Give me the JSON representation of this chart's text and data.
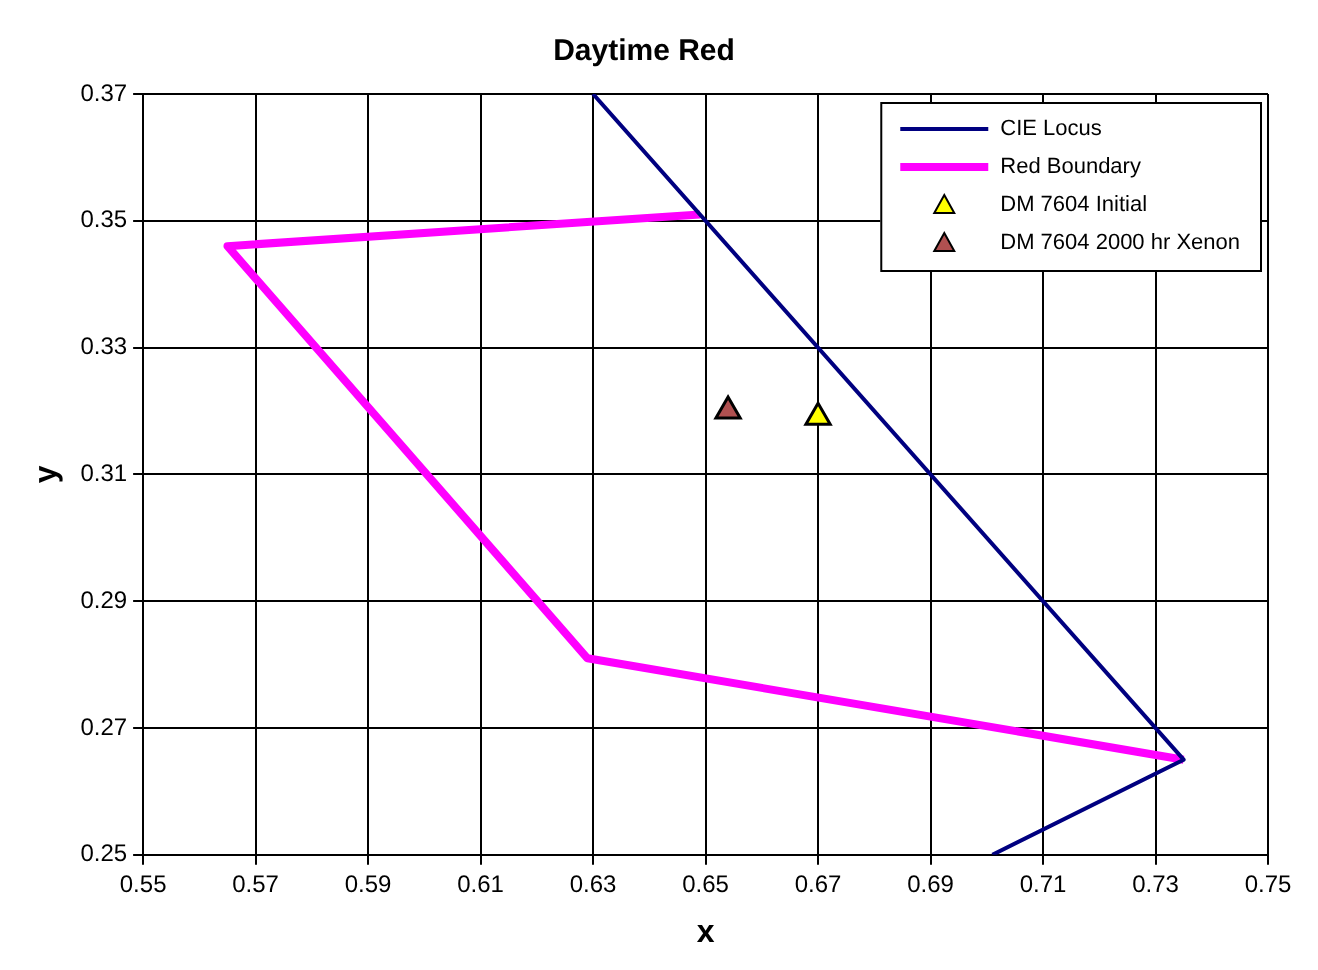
{
  "chart_data": {
    "type": "line",
    "title": "Daytime Red",
    "xlabel": "x",
    "ylabel": "y",
    "xlim": [
      0.55,
      0.75
    ],
    "xticks": [
      0.55,
      0.57,
      0.59,
      0.61,
      0.63,
      0.65,
      0.67,
      0.69,
      0.71,
      0.73,
      0.75
    ],
    "ylim": [
      0.25,
      0.37
    ],
    "yticks": [
      0.25,
      0.27,
      0.29,
      0.31,
      0.33,
      0.35,
      0.37
    ],
    "grid": true,
    "legend": "top right",
    "marker": "none",
    "series": [
      {
        "name": "CIE Locus",
        "color": "#000080",
        "x": [
          0.63,
          0.735,
          0.701
        ],
        "values": [
          0.37,
          0.265,
          0.25
        ]
      },
      {
        "name": "Red Boundary",
        "color": "#ff00ff",
        "x": [
          0.649,
          0.565,
          0.629,
          0.735
        ],
        "values": [
          0.351,
          0.346,
          0.281,
          0.265
        ]
      },
      {
        "name": "DM 7604 Initial",
        "type": "scatter",
        "marker": "triangle",
        "color": "#ffff00",
        "x": [
          0.67
        ],
        "values": [
          0.319
        ]
      },
      {
        "name": "DM 7604 2000 hr Xenon",
        "type": "scatter",
        "marker": "triangle",
        "color": "#b05050",
        "x": [
          0.654
        ],
        "values": [
          0.32
        ]
      }
    ]
  }
}
